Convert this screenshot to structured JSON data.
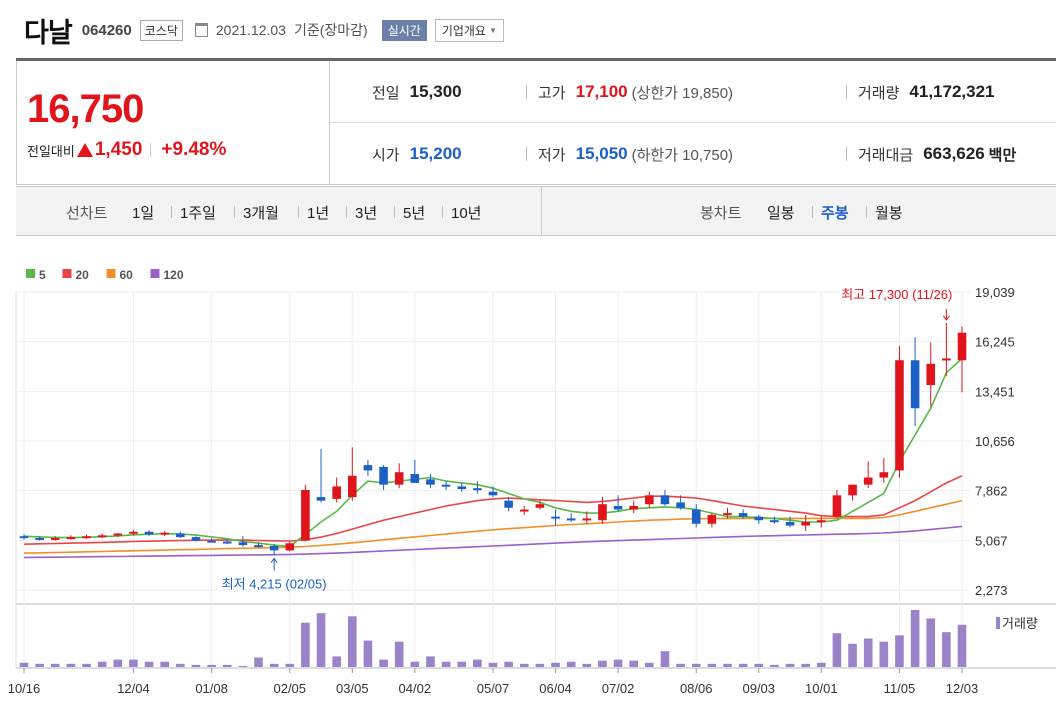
{
  "stock": {
    "name": "다날",
    "code": "064260",
    "market": "코스닥",
    "date": "2021.12.03",
    "basis": "기준(장마감)",
    "realtime_label": "실시간",
    "company_btn": "기업개요"
  },
  "price": {
    "current": "16,750",
    "change_label": "전일대비",
    "change": "1,450",
    "change_pct": "+9.48%"
  },
  "stats": {
    "prev_label": "전일",
    "prev": "15,300",
    "high_label": "고가",
    "high": "17,100",
    "upper_limit": "(상한가 19,850)",
    "volume_label": "거래량",
    "volume": "41,172,321",
    "open_label": "시가",
    "open": "15,200",
    "low_label": "저가",
    "low": "15,050",
    "lower_limit": "(하한가 10,750)",
    "amount_label": "거래대금",
    "amount": "663,626",
    "amount_unit": "백만"
  },
  "periods": {
    "line_label": "선차트",
    "line_items": [
      "1일",
      "1주일",
      "3개월",
      "1년",
      "3년",
      "5년",
      "10년"
    ],
    "candle_label": "봉차트",
    "candle_items": [
      "일봉",
      "주봉",
      "월봉"
    ],
    "candle_active": 1
  },
  "colors": {
    "up": "#e0151b",
    "down": "#1c5fc7",
    "ma5": "#58b947",
    "ma20": "#e84646",
    "ma60": "#f0902a",
    "ma120": "#9a5fc9",
    "volume": "#9a83c9"
  },
  "chart_data": {
    "type": "candlestick",
    "legend": [
      {
        "name": "5",
        "color": "#58b947"
      },
      {
        "name": "20",
        "color": "#e84646"
      },
      {
        "name": "60",
        "color": "#f0902a"
      },
      {
        "name": "120",
        "color": "#9a5fc9"
      }
    ],
    "y_ticks": [
      "19,039",
      "16,245",
      "13,451",
      "10,656",
      "7,862",
      "5,067",
      "2,273"
    ],
    "ylim": [
      2273,
      19039
    ],
    "x_ticks": [
      "10/16",
      "12/04",
      "01/08",
      "02/05",
      "03/05",
      "04/02",
      "05/07",
      "06/04",
      "07/02",
      "08/06",
      "09/03",
      "10/01",
      "11/05",
      "12/03"
    ],
    "x_tick_index": [
      0,
      7,
      12,
      17,
      21,
      25,
      30,
      34,
      38,
      43,
      47,
      51,
      56,
      60
    ],
    "high_annotation": "최고 17,300 (11/26)",
    "high_index": 59,
    "high_value": 17300,
    "low_annotation": "최저 4,215 (02/05)",
    "low_index": 16,
    "low_value": 4215,
    "volume_label": "거래량",
    "candles": [
      [
        5300,
        5400,
        5100,
        5250
      ],
      [
        5200,
        5300,
        5050,
        5150
      ],
      [
        5150,
        5300,
        5050,
        5200
      ],
      [
        5200,
        5350,
        5100,
        5250
      ],
      [
        5250,
        5400,
        5150,
        5300
      ],
      [
        5300,
        5450,
        5200,
        5350
      ],
      [
        5350,
        5500,
        5250,
        5450
      ],
      [
        5450,
        5650,
        5350,
        5550
      ],
      [
        5550,
        5650,
        5300,
        5400
      ],
      [
        5400,
        5600,
        5300,
        5500
      ],
      [
        5450,
        5550,
        5200,
        5250
      ],
      [
        5250,
        5300,
        5000,
        5050
      ],
      [
        5050,
        5200,
        4950,
        5000
      ],
      [
        5000,
        5100,
        4850,
        4950
      ],
      [
        4950,
        5300,
        4700,
        4800
      ],
      [
        4800,
        4950,
        4650,
        4750
      ],
      [
        4750,
        4850,
        4215,
        4500
      ],
      [
        4500,
        5000,
        4450,
        4900
      ],
      [
        5050,
        8200,
        5000,
        7900
      ],
      [
        7500,
        10200,
        7200,
        7300
      ],
      [
        7400,
        8600,
        7200,
        8100
      ],
      [
        7500,
        10300,
        7300,
        8700
      ],
      [
        9300,
        9600,
        8700,
        9000
      ],
      [
        9200,
        9300,
        7900,
        8200
      ],
      [
        8200,
        9400,
        8000,
        8900
      ],
      [
        8800,
        9600,
        8300,
        8300
      ],
      [
        8500,
        8800,
        8000,
        8200
      ],
      [
        8200,
        8400,
        7900,
        8100
      ],
      [
        8100,
        8300,
        7800,
        7950
      ],
      [
        8000,
        8400,
        7700,
        7900
      ],
      [
        7800,
        8100,
        7500,
        7600
      ],
      [
        7300,
        7500,
        6700,
        6900
      ],
      [
        6700,
        7000,
        6500,
        6800
      ],
      [
        6900,
        7300,
        6800,
        7100
      ],
      [
        6400,
        6800,
        5900,
        6300
      ],
      [
        6300,
        6600,
        6100,
        6200
      ],
      [
        6200,
        6700,
        6000,
        6300
      ],
      [
        6200,
        7500,
        6000,
        7100
      ],
      [
        7000,
        7600,
        6700,
        6800
      ],
      [
        6800,
        7300,
        6600,
        7000
      ],
      [
        7100,
        7800,
        6900,
        7600
      ],
      [
        7600,
        7900,
        7000,
        7100
      ],
      [
        7200,
        7600,
        6800,
        6900
      ],
      [
        6800,
        7100,
        5800,
        6000
      ],
      [
        6000,
        6600,
        5800,
        6500
      ],
      [
        6500,
        6900,
        6300,
        6600
      ],
      [
        6600,
        6800,
        6300,
        6400
      ],
      [
        6400,
        6500,
        6000,
        6200
      ],
      [
        6200,
        6400,
        6000,
        6100
      ],
      [
        6100,
        6400,
        5800,
        5900
      ],
      [
        5900,
        6500,
        5600,
        6100
      ],
      [
        6100,
        6400,
        5800,
        6200
      ],
      [
        6400,
        7900,
        6300,
        7600
      ],
      [
        7600,
        8200,
        7300,
        8200
      ],
      [
        8200,
        9500,
        8000,
        8600
      ],
      [
        8600,
        9700,
        8300,
        8900
      ],
      [
        9000,
        16000,
        8600,
        15200
      ],
      [
        15200,
        16500,
        11500,
        12500
      ],
      [
        13800,
        16200,
        12600,
        15000
      ],
      [
        15300,
        17300,
        14300,
        15300
      ],
      [
        15200,
        17100,
        13400,
        16750
      ]
    ],
    "ma5": [
      5300,
      5260,
      5230,
      5220,
      5240,
      5270,
      5310,
      5380,
      5410,
      5440,
      5430,
      5360,
      5260,
      5160,
      5000,
      4910,
      4800,
      4720,
      5400,
      6100,
      6700,
      7600,
      8400,
      8300,
      8400,
      8500,
      8600,
      8400,
      8300,
      8200,
      8000,
      7700,
      7400,
      7200,
      6900,
      6700,
      6600,
      6600,
      6700,
      6850,
      6900,
      6950,
      6900,
      6800,
      6600,
      6400,
      6400,
      6350,
      6300,
      6200,
      6100,
      6100,
      6200,
      6700,
      7200,
      7700,
      9500,
      11000,
      12500,
      14500,
      15300
    ],
    "ma20": [
      4850,
      4870,
      4890,
      4910,
      4930,
      4950,
      4980,
      5000,
      5020,
      5040,
      5060,
      5070,
      5080,
      5090,
      5080,
      5060,
      5040,
      5030,
      5100,
      5250,
      5450,
      5700,
      5950,
      6200,
      6400,
      6600,
      6800,
      7000,
      7150,
      7300,
      7400,
      7450,
      7400,
      7350,
      7300,
      7250,
      7200,
      7250,
      7350,
      7450,
      7550,
      7550,
      7500,
      7450,
      7300,
      7150,
      7000,
      6900,
      6800,
      6700,
      6600,
      6450,
      6400,
      6400,
      6400,
      6500,
      6900,
      7300,
      7800,
      8300,
      8700
    ],
    "ma60": [
      4350,
      4360,
      4380,
      4400,
      4420,
      4440,
      4460,
      4480,
      4500,
      4520,
      4540,
      4560,
      4580,
      4600,
      4620,
      4640,
      4660,
      4680,
      4720,
      4780,
      4850,
      4930,
      5010,
      5100,
      5180,
      5260,
      5340,
      5420,
      5500,
      5580,
      5660,
      5720,
      5780,
      5840,
      5900,
      5960,
      6000,
      6050,
      6100,
      6150,
      6200,
      6230,
      6260,
      6280,
      6300,
      6300,
      6300,
      6300,
      6300,
      6300,
      6300,
      6300,
      6300,
      6300,
      6300,
      6350,
      6500,
      6700,
      6900,
      7100,
      7300
    ],
    "ma120": [
      4100,
      4110,
      4120,
      4130,
      4140,
      4150,
      4160,
      4170,
      4180,
      4190,
      4200,
      4210,
      4220,
      4230,
      4240,
      4250,
      4260,
      4270,
      4290,
      4320,
      4350,
      4390,
      4430,
      4470,
      4510,
      4550,
      4590,
      4630,
      4670,
      4710,
      4750,
      4790,
      4830,
      4870,
      4910,
      4950,
      4990,
      5020,
      5050,
      5080,
      5110,
      5140,
      5170,
      5200,
      5230,
      5260,
      5290,
      5310,
      5330,
      5350,
      5370,
      5390,
      5410,
      5430,
      5450,
      5480,
      5530,
      5600,
      5680,
      5760,
      5850
    ],
    "volume": [
      4,
      3,
      3,
      3,
      3,
      5,
      7,
      7,
      5,
      5,
      3,
      2,
      2,
      2,
      1,
      9,
      3,
      3,
      42,
      51,
      10,
      48,
      25,
      7,
      24,
      5,
      10,
      5,
      5,
      7,
      4,
      5,
      3,
      3,
      4,
      5,
      3,
      6,
      7,
      6,
      4,
      15,
      3,
      3,
      3,
      3,
      3,
      3,
      2,
      3,
      3,
      4,
      32,
      22,
      27,
      24,
      30,
      54,
      46,
      33,
      40
    ]
  }
}
